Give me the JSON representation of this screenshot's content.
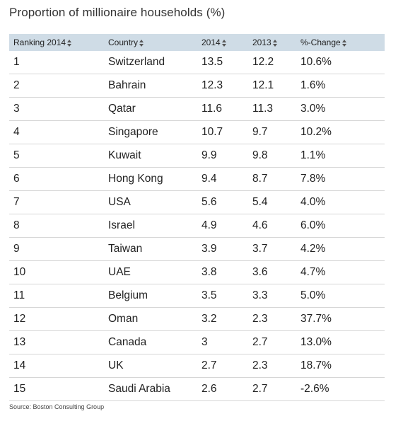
{
  "title": "Proportion of millionaire households (%)",
  "table": {
    "columns": [
      "Ranking 2014",
      "Country",
      "2014",
      "2013",
      "%-Change"
    ],
    "rows": [
      [
        "1",
        "Switzerland",
        "13.5",
        "12.2",
        "10.6%"
      ],
      [
        "2",
        "Bahrain",
        "12.3",
        "12.1",
        "1.6%"
      ],
      [
        "3",
        "Qatar",
        "11.6",
        "11.3",
        "3.0%"
      ],
      [
        "4",
        "Singapore",
        "10.7",
        "9.7",
        "10.2%"
      ],
      [
        "5",
        "Kuwait",
        "9.9",
        "9.8",
        "1.1%"
      ],
      [
        "6",
        "Hong Kong",
        "9.4",
        "8.7",
        "7.8%"
      ],
      [
        "7",
        "USA",
        "5.6",
        "5.4",
        "4.0%"
      ],
      [
        "8",
        "Israel",
        "4.9",
        "4.6",
        "6.0%"
      ],
      [
        "9",
        "Taiwan",
        "3.9",
        "3.7",
        "4.2%"
      ],
      [
        "10",
        "UAE",
        "3.8",
        "3.6",
        "4.7%"
      ],
      [
        "11",
        "Belgium",
        "3.5",
        "3.3",
        "5.0%"
      ],
      [
        "12",
        "Oman",
        "3.2",
        "2.3",
        "37.7%"
      ],
      [
        "13",
        "Canada",
        "3",
        "2.7",
        "13.0%"
      ],
      [
        "14",
        "UK",
        "2.7",
        "2.3",
        "18.7%"
      ],
      [
        "15",
        "Saudi Arabia",
        "2.6",
        "2.7",
        "-2.6%"
      ]
    ]
  },
  "source": "Source: Boston Consulting Group",
  "colors": {
    "header_bg": "#cfdce6",
    "row_border": "#d6d6d6"
  },
  "icons": {
    "sort": "sort-arrows-icon"
  }
}
